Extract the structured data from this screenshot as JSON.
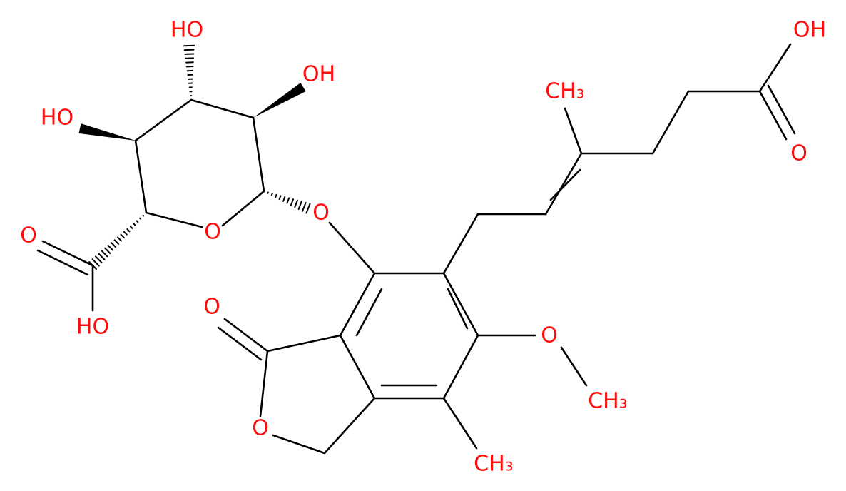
{
  "labels": [
    "HO",
    "OH",
    "HO",
    "O",
    "O",
    "O",
    "HO",
    "O",
    "O",
    "O",
    "CH₃",
    "CH₃",
    "CH₃",
    "OH",
    "O"
  ]
}
